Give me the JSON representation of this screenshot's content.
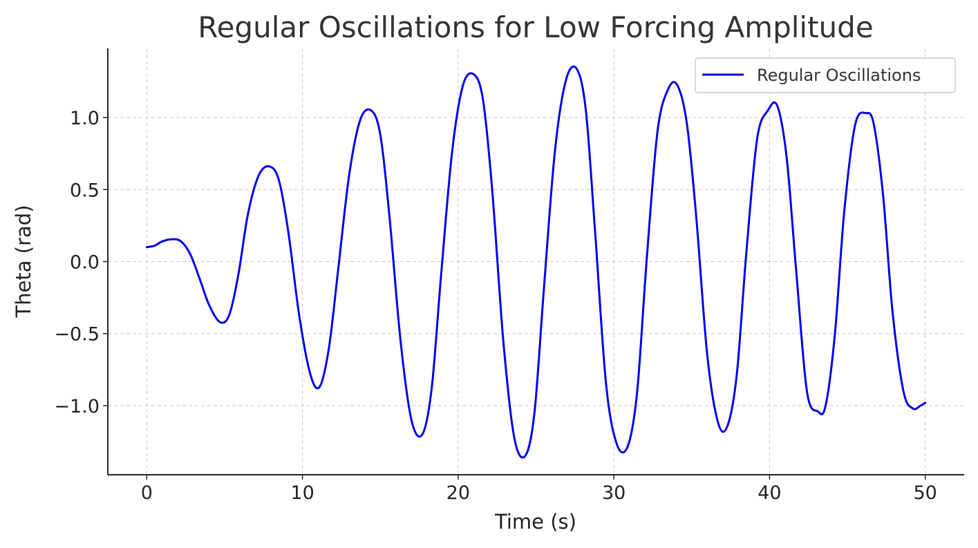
{
  "chart_data": {
    "type": "line",
    "title": "Regular Oscillations for Low Forcing Amplitude",
    "xlabel": "Time (s)",
    "ylabel": "Theta (rad)",
    "xlim": [
      -2.5,
      52.5
    ],
    "ylim": [
      -1.48,
      1.48
    ],
    "x_ticks": [
      0,
      10,
      20,
      30,
      40,
      50
    ],
    "x_tick_labels": [
      "0",
      "10",
      "20",
      "30",
      "40",
      "50"
    ],
    "y_ticks": [
      1.0,
      0.5,
      0.0,
      -0.5,
      -1.0
    ],
    "y_tick_labels": [
      "1.0",
      "0.5",
      "0.0",
      "−0.5",
      "−1.0"
    ],
    "grid": true,
    "legend_position": "top-right",
    "series": [
      {
        "name": "Regular Oscillations",
        "color": "#0000ee",
        "x": [
          0,
          0.5,
          1.0,
          1.6,
          2.2,
          2.8,
          3.4,
          4.0,
          4.7,
          5.3,
          5.9,
          6.5,
          7.2,
          7.9,
          8.5,
          9.1,
          9.8,
          10.5,
          11.1,
          11.7,
          12.3,
          13.0,
          13.7,
          14.4,
          15.0,
          15.6,
          16.3,
          17.0,
          17.7,
          18.3,
          18.9,
          19.6,
          20.3,
          21.0,
          21.6,
          22.2,
          22.9,
          23.6,
          24.3,
          24.9,
          25.5,
          26.2,
          26.9,
          27.6,
          28.2,
          28.8,
          29.5,
          30.2,
          30.9,
          31.5,
          32.1,
          32.8,
          33.5,
          34.1,
          34.7,
          35.3,
          36.0,
          36.7,
          37.3,
          37.9,
          38.5,
          39.2,
          39.9,
          40.5,
          41.1,
          41.7,
          42.4,
          43.1,
          43.6,
          44.2,
          44.8,
          45.5,
          46.2,
          46.7,
          47.3,
          47.9,
          48.6,
          49.2,
          49.7,
          50.0
        ],
        "y": [
          0.1,
          0.11,
          0.14,
          0.155,
          0.14,
          0.05,
          -0.12,
          -0.3,
          -0.42,
          -0.37,
          -0.08,
          0.33,
          0.6,
          0.66,
          0.56,
          0.2,
          -0.38,
          -0.78,
          -0.87,
          -0.6,
          -0.05,
          0.6,
          0.98,
          1.05,
          0.88,
          0.3,
          -0.55,
          -1.1,
          -1.2,
          -0.88,
          -0.1,
          0.75,
          1.22,
          1.3,
          1.12,
          0.48,
          -0.55,
          -1.22,
          -1.35,
          -1.05,
          -0.2,
          0.75,
          1.25,
          1.34,
          1.05,
          0.2,
          -0.85,
          -1.27,
          -1.28,
          -0.9,
          0.0,
          0.9,
          1.2,
          1.22,
          0.95,
          0.3,
          -0.65,
          -1.12,
          -1.14,
          -0.78,
          0.05,
          0.85,
          1.05,
          1.08,
          0.72,
          -0.05,
          -0.9,
          -1.04,
          -1.0,
          -0.5,
          0.35,
          0.95,
          1.03,
          0.95,
          0.45,
          -0.35,
          -0.9,
          -1.02,
          -1.0,
          -0.98
        ]
      }
    ]
  }
}
